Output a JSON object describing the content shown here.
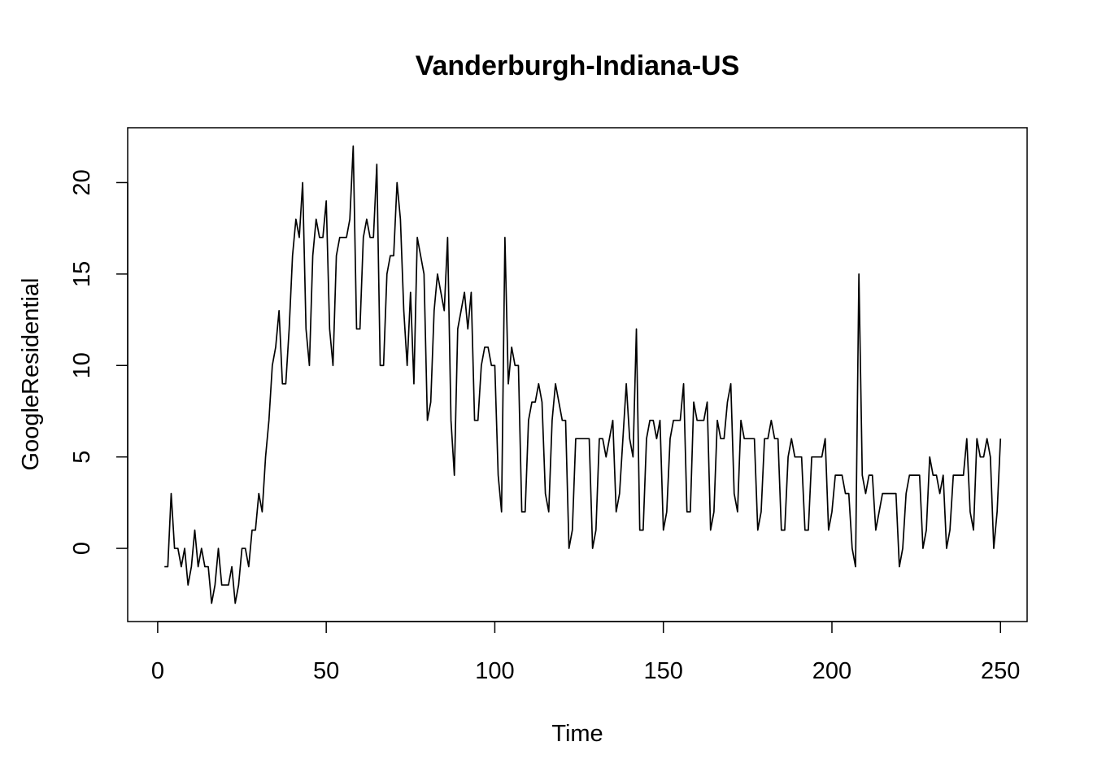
{
  "chart_data": {
    "type": "line",
    "title": "Vanderburgh-Indiana-US",
    "xlabel": "Time",
    "ylabel": "GoogleResidential",
    "xlim": [
      -8.9,
      257.9
    ],
    "ylim": [
      -4,
      23
    ],
    "xticks": [
      0,
      50,
      100,
      150,
      200,
      250
    ],
    "yticks": [
      0,
      5,
      10,
      15,
      20
    ],
    "grid": false,
    "series": [
      {
        "x_start": 2,
        "values": [
          -1,
          -1,
          3,
          0,
          0,
          -1,
          0,
          -2,
          -1,
          1,
          -1,
          0,
          -1,
          -1,
          -3,
          -2,
          0,
          -2,
          -2,
          -2,
          -1,
          -3,
          -2,
          0,
          0,
          -1,
          1,
          1,
          3,
          2,
          5,
          7,
          10,
          11,
          13,
          9,
          9,
          12,
          16,
          18,
          17,
          20,
          12,
          10,
          16,
          18,
          17,
          17,
          19,
          12,
          10,
          16,
          17,
          17,
          17,
          18,
          22,
          12,
          12,
          17,
          18,
          17,
          17,
          21,
          10,
          10,
          15,
          16,
          16,
          20,
          18,
          13,
          10,
          14,
          9,
          17,
          16,
          15,
          7,
          8,
          13,
          15,
          14,
          13,
          17,
          7,
          4,
          12,
          13,
          14,
          12,
          14,
          7,
          7,
          10,
          11,
          11,
          10,
          10,
          4,
          2,
          17,
          9,
          11,
          10,
          10,
          2,
          2,
          7,
          8,
          8,
          9,
          8,
          3,
          2,
          7,
          9,
          8,
          7,
          7,
          0,
          1,
          6,
          6,
          6,
          6,
          6,
          0,
          1,
          6,
          6,
          5,
          6,
          7,
          2,
          3,
          6,
          9,
          6,
          5,
          12,
          1,
          1,
          6,
          7,
          7,
          6,
          7,
          1,
          2,
          6,
          7,
          7,
          7,
          9,
          2,
          2,
          8,
          7,
          7,
          7,
          8,
          1,
          2,
          7,
          6,
          6,
          8,
          9,
          3,
          2,
          7,
          6,
          6,
          6,
          6,
          1,
          2,
          6,
          6,
          7,
          6,
          6,
          1,
          1,
          5,
          6,
          5,
          5,
          5,
          1,
          1,
          5,
          5,
          5,
          5,
          6,
          1,
          2,
          4,
          4,
          4,
          3,
          3,
          0,
          -1,
          15,
          4,
          3,
          4,
          4,
          1,
          2,
          3,
          3,
          3,
          3,
          3,
          -1,
          0,
          3,
          4,
          4,
          4,
          4,
          0,
          1,
          5,
          4,
          4,
          3,
          4,
          0,
          1,
          4,
          4,
          4,
          4,
          6,
          2,
          1,
          6,
          5,
          5,
          6,
          5,
          0,
          2,
          6
        ]
      }
    ]
  }
}
